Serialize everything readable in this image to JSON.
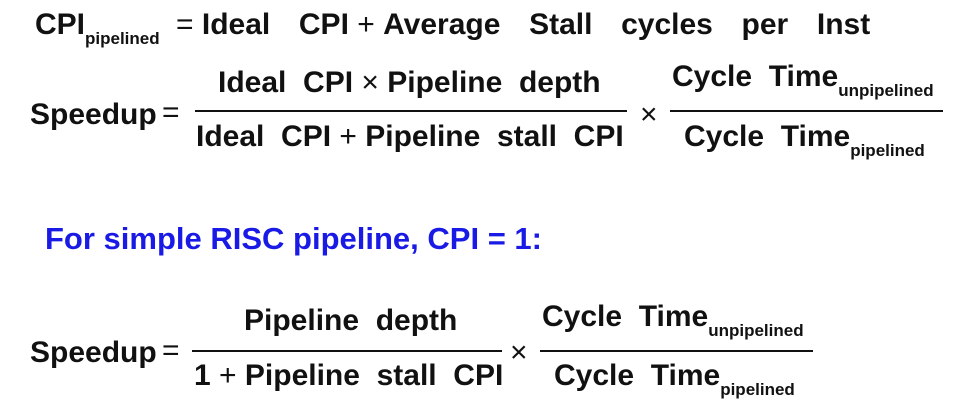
{
  "eq1": {
    "lhs": "CPI",
    "lhs_sub": "pipelined",
    "equals": "=",
    "term1": "Ideal  CPI",
    "plus": "+",
    "term2": "Average  Stall  cycles  per  Inst"
  },
  "eq2": {
    "lhs": "Speedup",
    "equals": "=",
    "num1": "Ideal  CPI",
    "num_times": "×",
    "num2": "Pipeline  depth",
    "den1": "Ideal  CPI",
    "den_plus": "+",
    "den2": "Pipeline  stall  CPI",
    "times": "×",
    "frac2_num": "Cycle  Time",
    "frac2_num_sub": "unpipelined",
    "frac2_den": "Cycle  Time",
    "frac2_den_sub": "pipelined"
  },
  "heading": {
    "text": "For simple RISC pipeline, CPI = 1:",
    "color": "#1a1ae6"
  },
  "eq3": {
    "lhs": "Speedup",
    "equals": "=",
    "num": "Pipeline  depth",
    "den1": "1",
    "den_plus": "+",
    "den2": "Pipeline  stall  CPI",
    "times": "×",
    "frac2_num": "Cycle  Time",
    "frac2_num_sub": "unpipelined",
    "frac2_den": "Cycle  Time",
    "frac2_den_sub": "pipelined"
  }
}
